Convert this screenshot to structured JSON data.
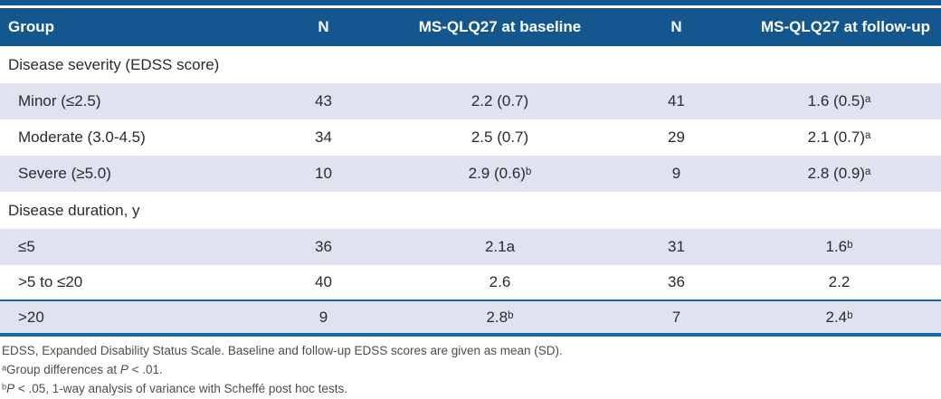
{
  "colors": {
    "header_bg": "#14578F",
    "accent_line": "#1668A3",
    "row_shade": "#DEE3EF",
    "body_text": "#2B2B2B",
    "footnote_text": "#4D4D4D"
  },
  "table": {
    "header": {
      "columns": [
        "Group",
        "N",
        "MS-QLQ27 at baseline",
        "N",
        "MS-QLQ27 at follow-up"
      ]
    },
    "sections": [
      {
        "title": "Disease severity (EDSS score)",
        "rows": [
          {
            "cells": [
              "Minor (≤2.5)",
              "43",
              "2.2 (0.7)",
              "41",
              "1.6 (0.5)ᵃ"
            ]
          },
          {
            "cells": [
              "Moderate (3.0-4.5)",
              "34",
              "2.5 (0.7)",
              "29",
              "2.1 (0.7)ᵃ"
            ]
          },
          {
            "cells": [
              "Severe (≥5.0)",
              "10",
              "2.9 (0.6)ᵇ",
              "9",
              "2.8 (0.9)ᵃ"
            ]
          }
        ]
      },
      {
        "title": "Disease duration, y",
        "rows": [
          {
            "cells": [
              "≤5",
              "36",
              "2.1a",
              "31",
              "1.6ᵇ"
            ]
          },
          {
            "cells": [
              ">5 to ≤20",
              "40",
              "2.6",
              "36",
              "2.2"
            ]
          },
          {
            "cells": [
              ">20",
              "9",
              "2.8ᵇ",
              "7",
              "2.4ᵇ"
            ]
          }
        ]
      }
    ],
    "footnotes": [
      {
        "segments": [
          {
            "text": "EDSS, Expanded Disability Status Scale. Baseline and follow-up EDSS scores are given as mean (SD)."
          }
        ]
      },
      {
        "segments": [
          {
            "text": "ᵃGroup differences at "
          },
          {
            "text": "P",
            "italic": true
          },
          {
            "text": " < .01."
          }
        ]
      },
      {
        "segments": [
          {
            "text": "ᵇ"
          },
          {
            "text": "P",
            "italic": true
          },
          {
            "text": " < .05, 1-way analysis of variance with Scheffé post hoc tests."
          }
        ]
      }
    ]
  }
}
